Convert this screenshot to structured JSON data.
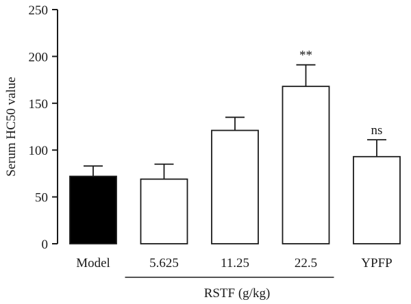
{
  "chart_data": {
    "type": "bar",
    "categories": [
      "Model",
      "5.625",
      "11.25",
      "22.5",
      "YPFP"
    ],
    "values": [
      72,
      69,
      121,
      168,
      93
    ],
    "errors": [
      11,
      16,
      14,
      23,
      18
    ],
    "annotations": [
      "",
      "",
      "",
      "**",
      "ns"
    ],
    "bar_colors": [
      "#000000",
      "#ffffff",
      "#ffffff",
      "#ffffff",
      "#ffffff"
    ],
    "ylabel": "Serum HC50 value",
    "ylim": [
      0,
      250
    ],
    "yticks": [
      0,
      50,
      100,
      150,
      200,
      250
    ],
    "group_label": "RSTF (g/kg)",
    "group_categories": [
      "5.625",
      "11.25",
      "22.5"
    ],
    "grid": false
  }
}
